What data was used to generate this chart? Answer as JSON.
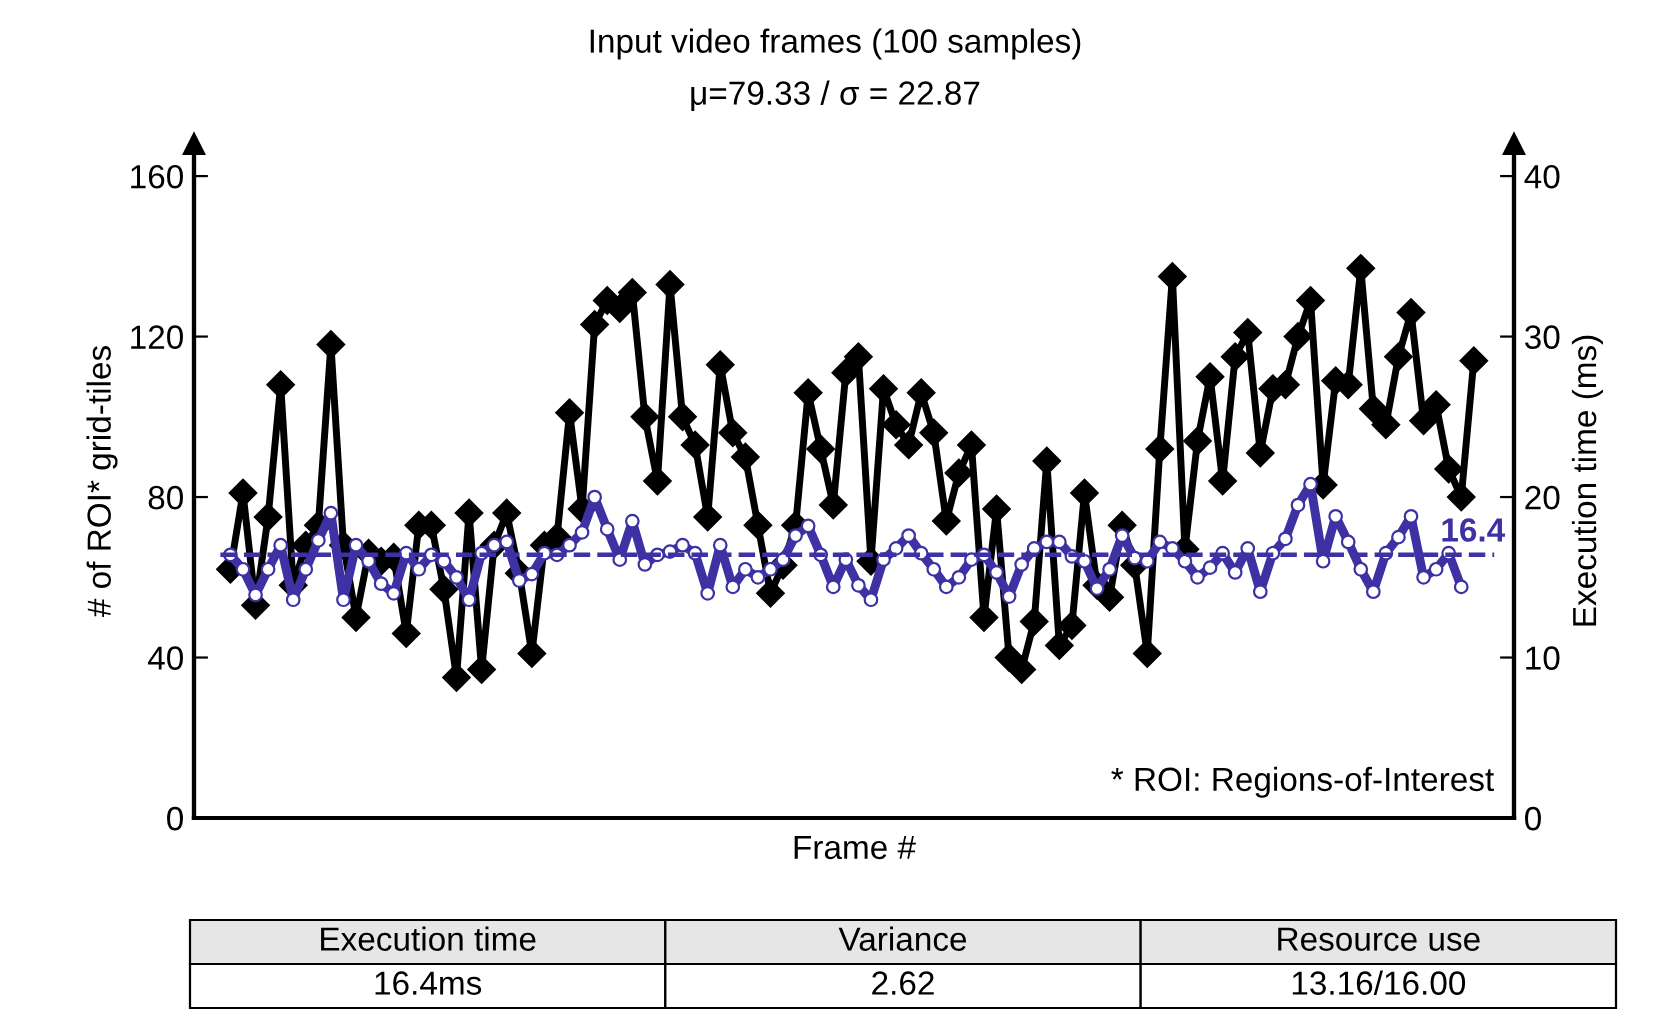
{
  "chart_data": {
    "type": "line",
    "title": "Input video frames (100 samples)",
    "subtitle": "μ=79.33 / σ = 22.87",
    "xlabel": "Frame #",
    "ylabel": "# of ROI* grid-tiles",
    "y2label": "Execution time (ms)",
    "categories": [
      null,
      null,
      null,
      null,
      null,
      null,
      null,
      null,
      null,
      null,
      null,
      null,
      null,
      null,
      null,
      null,
      null,
      null,
      null,
      null,
      null,
      null,
      null,
      null,
      null,
      null,
      null,
      null,
      null,
      null,
      null,
      null,
      null,
      null,
      null,
      null,
      null,
      null,
      null,
      null,
      null,
      null,
      null,
      null,
      null,
      null,
      null,
      null,
      null,
      null,
      null,
      null,
      null,
      null,
      null,
      null,
      null,
      null,
      null,
      null,
      null,
      null,
      null,
      null,
      null,
      null,
      null,
      null,
      null,
      null,
      null,
      null,
      null,
      null,
      null,
      null,
      null,
      null,
      null,
      null,
      null,
      null,
      null,
      null,
      null,
      null,
      null,
      null,
      null,
      null,
      null,
      null,
      null,
      null,
      null,
      null,
      null,
      null,
      null,
      null
    ],
    "series": [
      {
        "color": "#000000",
        "marker": "diamond",
        "values": [
          62,
          81,
          53,
          75,
          108,
          58,
          68,
          73,
          118,
          68,
          50,
          66,
          64,
          65,
          46,
          73,
          73,
          57,
          35,
          76,
          37,
          68,
          76,
          61,
          41,
          68,
          70,
          101,
          77,
          123,
          129,
          127,
          131,
          100,
          84,
          133,
          100,
          93,
          75,
          113,
          96,
          90,
          73,
          56,
          63,
          73,
          106,
          92,
          78,
          111,
          115,
          64,
          107,
          98,
          93,
          106,
          96,
          74,
          86,
          93,
          50,
          77,
          40,
          37,
          49,
          89,
          43,
          48,
          81,
          58,
          55,
          73,
          63,
          41,
          92,
          135,
          67,
          94,
          110,
          84,
          115,
          121,
          91,
          107,
          108,
          120,
          129,
          83,
          109,
          108,
          137,
          102,
          98,
          115,
          126,
          99,
          103,
          87,
          80,
          114
        ]
      },
      {
        "color": "#3d31a3",
        "marker": "circle",
        "axis": "y2",
        "values": [
          16.4,
          15.5,
          13.9,
          15.5,
          17,
          13.6,
          15.5,
          17.3,
          19,
          13.6,
          17,
          16,
          14.6,
          14,
          16.5,
          15.5,
          16.4,
          16,
          15,
          13.6,
          16.5,
          17,
          17.2,
          14.8,
          15.2,
          16.5,
          16.4,
          17,
          17.8,
          20,
          18,
          16.1,
          18.5,
          15.8,
          16.4,
          16.6,
          17,
          16.5,
          14,
          17,
          14.4,
          15.5,
          15,
          15.5,
          16.1,
          17.6,
          18.2,
          16.4,
          14.4,
          16.1,
          14.5,
          13.6,
          16.1,
          16.8,
          17.6,
          16.5,
          15.5,
          14.4,
          15,
          16.1,
          16.4,
          15.3,
          13.8,
          15.8,
          16.8,
          17.2,
          17.2,
          16.3,
          16,
          14.3,
          15.5,
          17.6,
          16.2,
          16,
          17.2,
          16.8,
          16,
          15,
          15.6,
          16.5,
          15.3,
          16.8,
          14.1,
          16.5,
          17.4,
          19.5,
          20.8,
          16,
          18.8,
          17.2,
          15.5,
          14.1,
          16.5,
          17.5,
          18.8,
          15,
          15.5,
          16.5,
          14.4,
          null
        ]
      }
    ],
    "ylim": [
      0,
      168
    ],
    "yticks": [
      0,
      40,
      80,
      120,
      160
    ],
    "y2lim": [
      0,
      42
    ],
    "y2ticks": [
      0,
      10,
      20,
      30,
      40
    ],
    "ref_lines": [
      {
        "axis": "y2",
        "value": 16.4,
        "label": "16.4",
        "color": "#3d31a3",
        "line_style": "dashed"
      }
    ],
    "annotations": [
      "* ROI: Regions-of-Interest",
      "Execution time",
      "Variance",
      "Resource use",
      "16.4ms",
      "2.62",
      "13.16/16.00"
    ],
    "tick_labels": "y",
    "grid": false
  }
}
